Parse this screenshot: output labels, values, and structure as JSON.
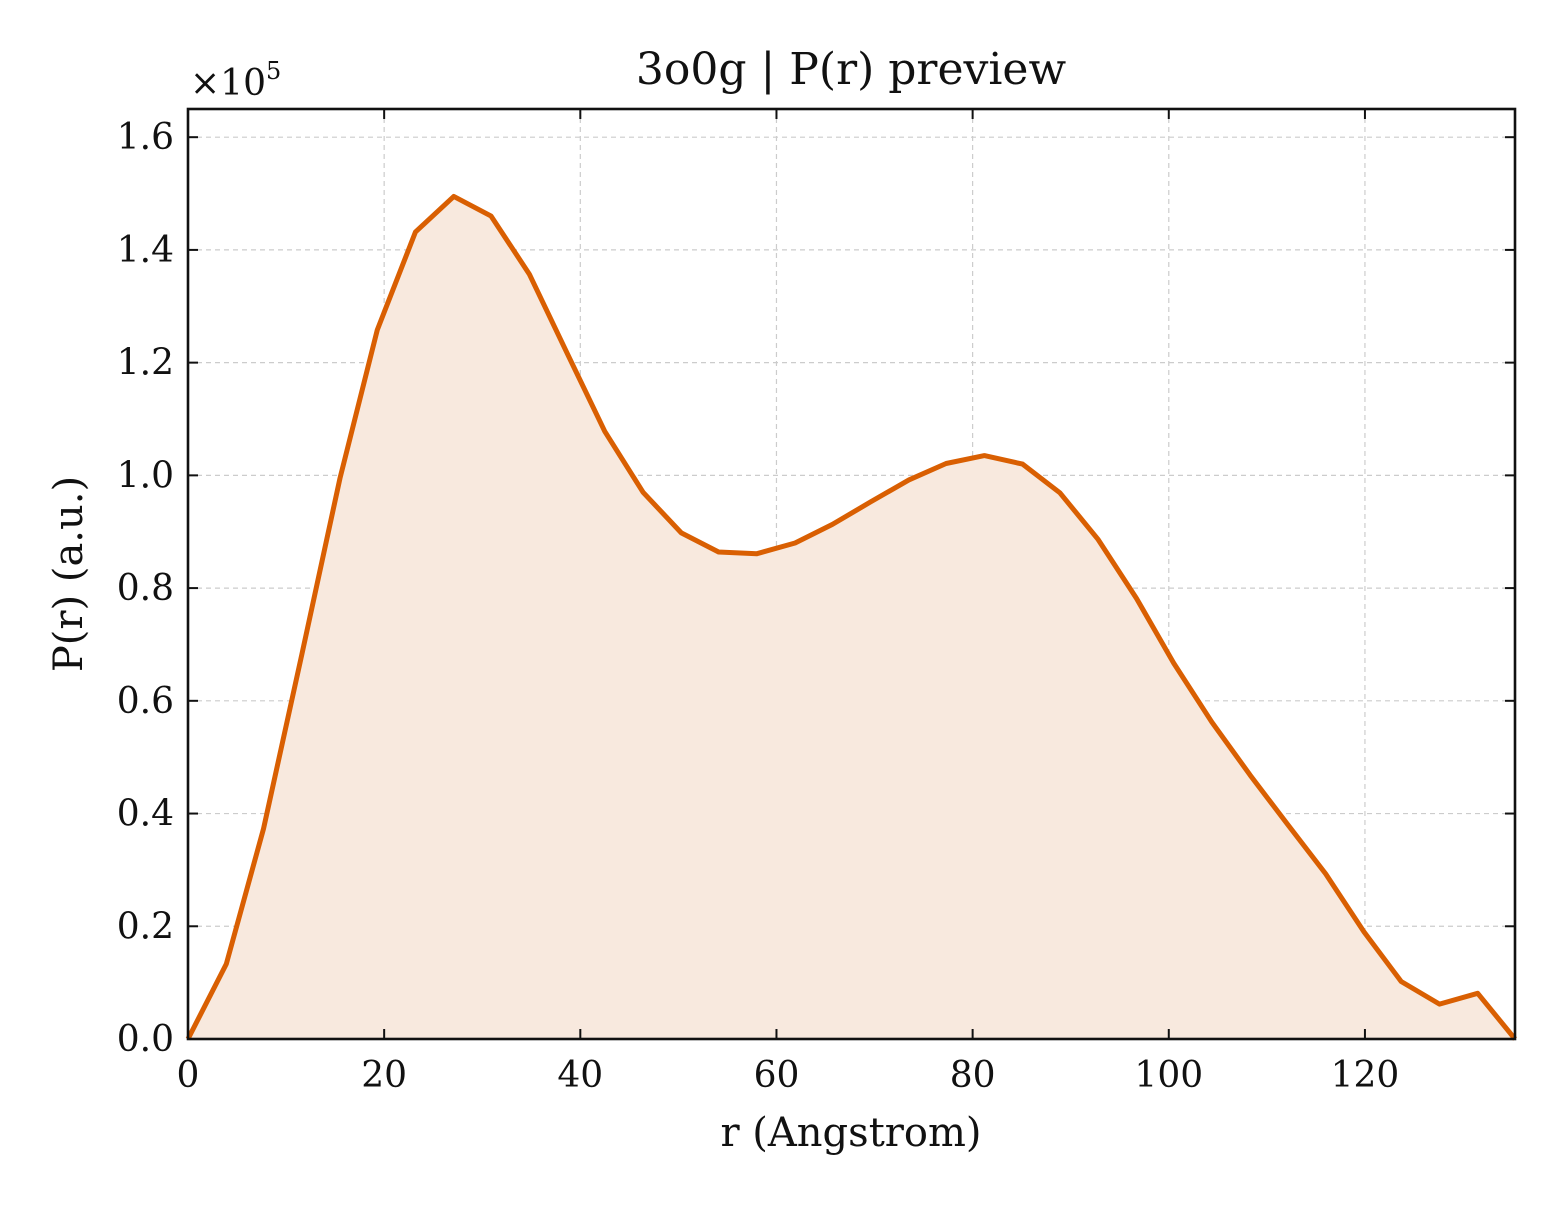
{
  "chart_data": {
    "type": "area",
    "title": "3o0g | P(r) preview",
    "xlabel": "r (Angstrom)",
    "ylabel": "P(r) (a.u.)",
    "y_multiplier_label": "×10",
    "y_multiplier_exponent": "5",
    "xlim": [
      0,
      135.3
    ],
    "ylim": [
      0,
      1.65
    ],
    "xticks": [
      0,
      20,
      40,
      60,
      80,
      100,
      120
    ],
    "xtick_labels": [
      "0",
      "20",
      "40",
      "60",
      "80",
      "100",
      "120"
    ],
    "yticks": [
      0.0,
      0.2,
      0.4,
      0.6,
      0.8,
      1.0,
      1.2,
      1.4,
      1.6
    ],
    "ytick_labels": [
      "0.0",
      "0.2",
      "0.4",
      "0.6",
      "0.8",
      "1.0",
      "1.2",
      "1.4",
      "1.6"
    ],
    "grid": true,
    "line_color": "#d95f02",
    "fill_color": "#f8e9de",
    "series": [
      {
        "x": [
          0,
          3.9,
          7.7,
          11.6,
          15.5,
          19.3,
          23.2,
          27.1,
          30.9,
          34.8,
          38.7,
          42.5,
          46.4,
          50.3,
          54.1,
          58.0,
          61.9,
          65.7,
          69.6,
          73.5,
          77.3,
          81.2,
          85.1,
          88.9,
          92.8,
          96.7,
          100.5,
          104.4,
          108.3,
          112.1,
          116.0,
          119.9,
          123.7,
          127.6,
          131.5,
          135.3
        ],
        "y": [
          0.0,
          0.133,
          0.373,
          0.682,
          0.995,
          1.258,
          1.432,
          1.495,
          1.46,
          1.357,
          1.215,
          1.078,
          0.97,
          0.898,
          0.864,
          0.861,
          0.88,
          0.913,
          0.953,
          0.992,
          1.021,
          1.035,
          1.02,
          0.969,
          0.886,
          0.782,
          0.667,
          0.562,
          0.468,
          0.381,
          0.293,
          0.19,
          0.102,
          0.062,
          0.081,
          0.0
        ]
      }
    ]
  }
}
